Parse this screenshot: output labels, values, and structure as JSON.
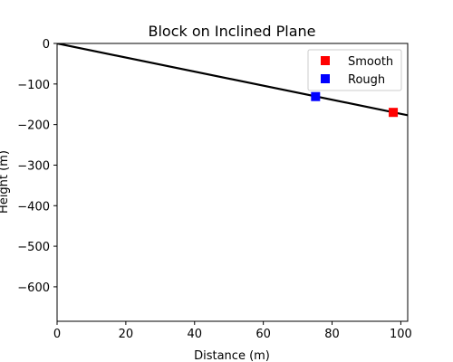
{
  "chart_data": {
    "type": "scatter",
    "title": "Block on Inclined Plane",
    "xlabel": "Distance (m)",
    "ylabel": "Height (m)",
    "xlim": [
      0,
      102
    ],
    "ylim": [
      -685,
      0
    ],
    "xticks": [
      0,
      20,
      40,
      60,
      80,
      100
    ],
    "yticks": [
      0,
      -100,
      -200,
      -300,
      -400,
      -500,
      -600
    ],
    "xtick_labels": [
      "0",
      "20",
      "40",
      "60",
      "80",
      "100"
    ],
    "ytick_labels": [
      "0",
      "−100",
      "−200",
      "−300",
      "−400",
      "−500",
      "−600"
    ],
    "grid": false,
    "legend_position": "top-right",
    "incline_line": {
      "x": [
        0,
        102
      ],
      "y": [
        0,
        -177
      ],
      "color": "#000000"
    },
    "series": [
      {
        "name": "Smooth",
        "marker": "square",
        "color": "#ff0000",
        "x": [
          97.8
        ],
        "y": [
          -170
        ]
      },
      {
        "name": "Rough",
        "marker": "square",
        "color": "#0000ff",
        "x": [
          75.2
        ],
        "y": [
          -131
        ]
      }
    ]
  }
}
